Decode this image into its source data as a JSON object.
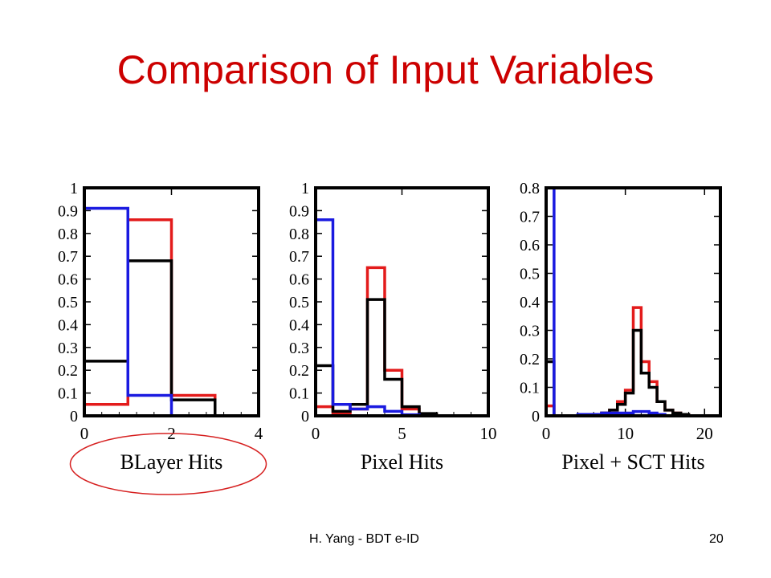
{
  "slide": {
    "title": "Comparison of Input Variables",
    "footer_left": "H. Yang - BDT e-ID",
    "page_number": "20"
  },
  "colors": {
    "red": "#e31b1b",
    "black": "#000000",
    "blue": "#1a1ae0",
    "title": "#cc0000",
    "circle": "#d62020"
  },
  "chart_data": [
    {
      "type": "step-histogram",
      "xlabel": "BLayer Hits",
      "x_ticks": [
        0,
        2,
        4
      ],
      "y_ticks": [
        0,
        0.1,
        0.2,
        0.3,
        0.4,
        0.5,
        0.6,
        0.7,
        0.8,
        0.9,
        1
      ],
      "xlim": [
        0,
        4
      ],
      "ylim": [
        0,
        1
      ],
      "highlighted": true,
      "series": [
        {
          "color": "red",
          "bins": [
            [
              0,
              1,
              0.05
            ],
            [
              1,
              2,
              0.86
            ],
            [
              2,
              3,
              0.09
            ],
            [
              3,
              4,
              0.0
            ]
          ]
        },
        {
          "color": "black",
          "bins": [
            [
              0,
              1,
              0.24
            ],
            [
              1,
              2,
              0.68
            ],
            [
              2,
              3,
              0.07
            ],
            [
              3,
              4,
              0.0
            ]
          ]
        },
        {
          "color": "blue",
          "bins": [
            [
              0,
              1,
              0.91
            ],
            [
              1,
              2,
              0.09
            ],
            [
              2,
              3,
              0.0
            ],
            [
              3,
              4,
              0.0
            ]
          ]
        }
      ]
    },
    {
      "type": "step-histogram",
      "xlabel": "Pixel Hits",
      "x_ticks": [
        0,
        5,
        10
      ],
      "y_ticks": [
        0,
        0.1,
        0.2,
        0.3,
        0.4,
        0.5,
        0.6,
        0.7,
        0.8,
        0.9,
        1
      ],
      "xlim": [
        0,
        10
      ],
      "ylim": [
        0,
        1
      ],
      "series": [
        {
          "color": "red",
          "bins": [
            [
              0,
              1,
              0.04
            ],
            [
              1,
              2,
              0.01
            ],
            [
              2,
              3,
              0.03
            ],
            [
              3,
              4,
              0.65
            ],
            [
              4,
              5,
              0.2
            ],
            [
              5,
              6,
              0.03
            ],
            [
              6,
              7,
              0.005
            ],
            [
              7,
              10,
              0.0
            ]
          ]
        },
        {
          "color": "black",
          "bins": [
            [
              0,
              1,
              0.22
            ],
            [
              1,
              2,
              0.02
            ],
            [
              2,
              3,
              0.05
            ],
            [
              3,
              4,
              0.51
            ],
            [
              4,
              5,
              0.16
            ],
            [
              5,
              6,
              0.04
            ],
            [
              6,
              7,
              0.01
            ],
            [
              7,
              10,
              0.0
            ]
          ]
        },
        {
          "color": "blue",
          "bins": [
            [
              0,
              1,
              0.86
            ],
            [
              1,
              2,
              0.05
            ],
            [
              2,
              3,
              0.03
            ],
            [
              3,
              4,
              0.04
            ],
            [
              4,
              5,
              0.02
            ],
            [
              5,
              6,
              0.005
            ],
            [
              6,
              10,
              0.0
            ]
          ]
        }
      ]
    },
    {
      "type": "step-histogram",
      "xlabel": "Pixel + SCT Hits",
      "x_ticks": [
        0,
        10,
        20
      ],
      "y_ticks": [
        0,
        0.1,
        0.2,
        0.3,
        0.4,
        0.5,
        0.6,
        0.7,
        0.8
      ],
      "xlim": [
        0,
        22
      ],
      "ylim": [
        0,
        0.8
      ],
      "series": [
        {
          "color": "red",
          "bins": [
            [
              0,
              1,
              0.035
            ],
            [
              1,
              7,
              0.0
            ],
            [
              7,
              8,
              0.01
            ],
            [
              8,
              9,
              0.02
            ],
            [
              9,
              10,
              0.05
            ],
            [
              10,
              11,
              0.09
            ],
            [
              11,
              12,
              0.38
            ],
            [
              12,
              13,
              0.19
            ],
            [
              13,
              14,
              0.12
            ],
            [
              14,
              15,
              0.05
            ],
            [
              15,
              16,
              0.02
            ],
            [
              16,
              17,
              0.01
            ],
            [
              17,
              18,
              0.005
            ],
            [
              18,
              22,
              0.0
            ]
          ]
        },
        {
          "color": "black",
          "bins": [
            [
              0,
              1,
              0.19
            ],
            [
              1,
              7,
              0.0
            ],
            [
              7,
              8,
              0.01
            ],
            [
              8,
              9,
              0.02
            ],
            [
              9,
              10,
              0.04
            ],
            [
              10,
              11,
              0.08
            ],
            [
              11,
              12,
              0.3
            ],
            [
              12,
              13,
              0.15
            ],
            [
              13,
              14,
              0.1
            ],
            [
              14,
              15,
              0.05
            ],
            [
              15,
              16,
              0.02
            ],
            [
              16,
              17,
              0.01
            ],
            [
              17,
              18,
              0.005
            ],
            [
              18,
              22,
              0.0
            ]
          ]
        },
        {
          "color": "blue",
          "bins": [
            [
              0,
              1,
              0.8
            ],
            [
              1,
              4,
              0.0
            ],
            [
              4,
              5,
              0.005
            ],
            [
              5,
              6,
              0.005
            ],
            [
              6,
              7,
              0.005
            ],
            [
              7,
              8,
              0.01
            ],
            [
              8,
              9,
              0.01
            ],
            [
              9,
              10,
              0.01
            ],
            [
              10,
              11,
              0.01
            ],
            [
              11,
              12,
              0.015
            ],
            [
              12,
              13,
              0.015
            ],
            [
              13,
              14,
              0.01
            ],
            [
              14,
              15,
              0.005
            ],
            [
              15,
              22,
              0.0
            ]
          ]
        }
      ]
    }
  ]
}
